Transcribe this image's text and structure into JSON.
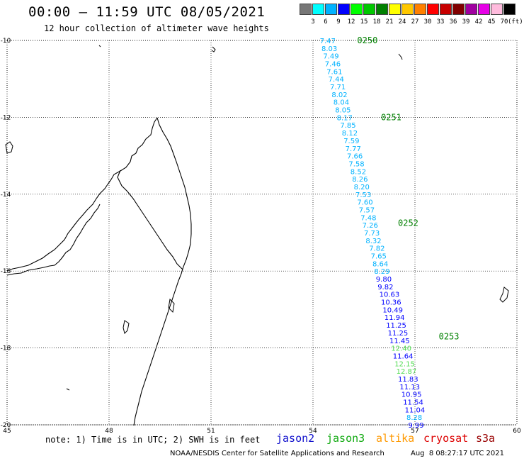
{
  "header": {
    "title": "00:00 – 11:59 UTC 08/05/2021",
    "subtitle": "12 hour collection of altimeter wave heights"
  },
  "legend": {
    "unit": "(ft)",
    "levels": [
      {
        "label": "3",
        "color": "#777777"
      },
      {
        "label": "6",
        "color": "#00ffff"
      },
      {
        "label": "9",
        "color": "#00b2ff"
      },
      {
        "label": "12",
        "color": "#0000ff"
      },
      {
        "label": "15",
        "color": "#00ff00"
      },
      {
        "label": "18",
        "color": "#00c800"
      },
      {
        "label": "21",
        "color": "#008000"
      },
      {
        "label": "24",
        "color": "#ffff00"
      },
      {
        "label": "27",
        "color": "#ffc800"
      },
      {
        "label": "30",
        "color": "#ff8000"
      },
      {
        "label": "33",
        "color": "#ff0000"
      },
      {
        "label": "36",
        "color": "#c80000"
      },
      {
        "label": "39",
        "color": "#800000"
      },
      {
        "label": "42",
        "color": "#a000a0"
      },
      {
        "label": "45",
        "color": "#e600e6"
      },
      {
        "label": "70",
        "color": "#ffbbdd"
      },
      {
        "label": "",
        "color": "#000000"
      }
    ]
  },
  "map": {
    "lon_ticks": [
      "45",
      "48",
      "51",
      "54",
      "57",
      "60"
    ],
    "lat_ticks": [
      "-10",
      "-12",
      "-14",
      "-16",
      "-18",
      "-20"
    ],
    "lon_range": [
      45,
      60
    ],
    "lat_range": [
      -20,
      -10
    ],
    "grid": "dotted"
  },
  "track": {
    "times": [
      {
        "label": "0250",
        "lon": 55.3,
        "lat": -10.0
      },
      {
        "label": "0251",
        "lon": 56.0,
        "lat": -12.0
      },
      {
        "label": "0252",
        "lon": 56.5,
        "lat": -14.75
      },
      {
        "label": "0253",
        "lon": 57.7,
        "lat": -17.7
      }
    ],
    "points": [
      {
        "v": "7.47",
        "lon": 54.2,
        "lat": -10.0,
        "sat": "jason3"
      },
      {
        "v": "8.03",
        "lon": 54.25,
        "lat": -10.2,
        "sat": "jason3"
      },
      {
        "v": "7.49",
        "lon": 54.3,
        "lat": -10.4,
        "sat": "jason3"
      },
      {
        "v": "7.46",
        "lon": 54.35,
        "lat": -10.6,
        "sat": "jason3"
      },
      {
        "v": "7.61",
        "lon": 54.4,
        "lat": -10.8,
        "sat": "jason3"
      },
      {
        "v": "7.44",
        "lon": 54.45,
        "lat": -11.0,
        "sat": "jason3"
      },
      {
        "v": "7.71",
        "lon": 54.5,
        "lat": -11.2,
        "sat": "jason3"
      },
      {
        "v": "8.02",
        "lon": 54.55,
        "lat": -11.4,
        "sat": "jason3"
      },
      {
        "v": "8.04",
        "lon": 54.6,
        "lat": -11.6,
        "sat": "jason3"
      },
      {
        "v": "8.05",
        "lon": 54.65,
        "lat": -11.8,
        "sat": "jason3"
      },
      {
        "v": "8.17",
        "lon": 54.7,
        "lat": -12.0,
        "sat": "jason3"
      },
      {
        "v": "7.85",
        "lon": 54.8,
        "lat": -12.2,
        "sat": "jason3"
      },
      {
        "v": "8.12",
        "lon": 54.85,
        "lat": -12.4,
        "sat": "jason3"
      },
      {
        "v": "7.59",
        "lon": 54.9,
        "lat": -12.6,
        "sat": "jason3"
      },
      {
        "v": "7.77",
        "lon": 54.95,
        "lat": -12.8,
        "sat": "jason3"
      },
      {
        "v": "7.66",
        "lon": 55.0,
        "lat": -13.0,
        "sat": "jason3"
      },
      {
        "v": "7.58",
        "lon": 55.05,
        "lat": -13.2,
        "sat": "jason3"
      },
      {
        "v": "8.52",
        "lon": 55.1,
        "lat": -13.4,
        "sat": "jason3"
      },
      {
        "v": "8.26",
        "lon": 55.15,
        "lat": -13.6,
        "sat": "jason3"
      },
      {
        "v": "8.20",
        "lon": 55.2,
        "lat": -13.8,
        "sat": "jason3"
      },
      {
        "v": "7.53",
        "lon": 55.25,
        "lat": -14.0,
        "sat": "jason3"
      },
      {
        "v": "7.60",
        "lon": 55.3,
        "lat": -14.2,
        "sat": "jason3"
      },
      {
        "v": "7.57",
        "lon": 55.35,
        "lat": -14.4,
        "sat": "jason3"
      },
      {
        "v": "7.48",
        "lon": 55.4,
        "lat": -14.6,
        "sat": "jason3"
      },
      {
        "v": "7.26",
        "lon": 55.45,
        "lat": -14.8,
        "sat": "jason3"
      },
      {
        "v": "7.73",
        "lon": 55.5,
        "lat": -15.0,
        "sat": "jason3"
      },
      {
        "v": "8.32",
        "lon": 55.55,
        "lat": -15.2,
        "sat": "jason3"
      },
      {
        "v": "7.82",
        "lon": 55.65,
        "lat": -15.4,
        "sat": "jason3"
      },
      {
        "v": "7.65",
        "lon": 55.7,
        "lat": -15.6,
        "sat": "jason3"
      },
      {
        "v": "8.64",
        "lon": 55.75,
        "lat": -15.8,
        "sat": "jason3"
      },
      {
        "v": "8.29",
        "lon": 55.8,
        "lat": -16.0,
        "sat": "jason3"
      },
      {
        "v": "9.80",
        "lon": 55.85,
        "lat": -16.2,
        "sat": "jason3"
      },
      {
        "v": "9.82",
        "lon": 55.9,
        "lat": -16.4,
        "sat": "jason3"
      },
      {
        "v": "10.63",
        "lon": 55.95,
        "lat": -16.6,
        "sat": "jason3"
      },
      {
        "v": "10.36",
        "lon": 56.0,
        "lat": -16.8,
        "sat": "jason3"
      },
      {
        "v": "10.49",
        "lon": 56.05,
        "lat": -17.0,
        "sat": "jason3"
      },
      {
        "v": "11.94",
        "lon": 56.1,
        "lat": -17.2,
        "sat": "jason3"
      },
      {
        "v": "11.25",
        "lon": 56.15,
        "lat": -17.4,
        "sat": "jason3"
      },
      {
        "v": "11.25",
        "lon": 56.2,
        "lat": -17.6,
        "sat": "jason3"
      },
      {
        "v": "11.45",
        "lon": 56.25,
        "lat": -17.8,
        "sat": "jason3"
      },
      {
        "v": "12.40",
        "lon": 56.3,
        "lat": -18.0,
        "sat": "jason3"
      },
      {
        "v": "11.64",
        "lon": 56.35,
        "lat": -18.2,
        "sat": "jason3"
      },
      {
        "v": "12.15",
        "lon": 56.4,
        "lat": -18.4,
        "sat": "jason3"
      },
      {
        "v": "12.87",
        "lon": 56.45,
        "lat": -18.6,
        "sat": "jason3"
      },
      {
        "v": "11.83",
        "lon": 56.5,
        "lat": -18.8,
        "sat": "jason3"
      },
      {
        "v": "11.13",
        "lon": 56.55,
        "lat": -19.0,
        "sat": "jason3"
      },
      {
        "v": "10.95",
        "lon": 56.6,
        "lat": -19.2,
        "sat": "jason3"
      },
      {
        "v": "11.54",
        "lon": 56.65,
        "lat": -19.4,
        "sat": "jason3"
      },
      {
        "v": "11.04",
        "lon": 56.7,
        "lat": -19.6,
        "sat": "jason3"
      },
      {
        "v": "8.28",
        "lon": 56.75,
        "lat": -19.8,
        "sat": "jason3"
      },
      {
        "v": "9.99",
        "lon": 56.8,
        "lat": -20.0,
        "sat": "jason3"
      }
    ]
  },
  "footer": {
    "note": "note: 1) Time is in UTC; 2) SWH is in feet",
    "satellites": [
      {
        "name": "jason2",
        "color": "#1010cc"
      },
      {
        "name": "jason3",
        "color": "#11aa11"
      },
      {
        "name": "altika",
        "color": "#ff9900"
      },
      {
        "name": "cryosat",
        "color": "#dd0000"
      },
      {
        "name": "s3a",
        "color": "#990000"
      }
    ],
    "credit": "NOAA/NESDIS Center for Satellite Applications and Research",
    "timestamp": "Aug  8 08:27:17 UTC 2021"
  }
}
